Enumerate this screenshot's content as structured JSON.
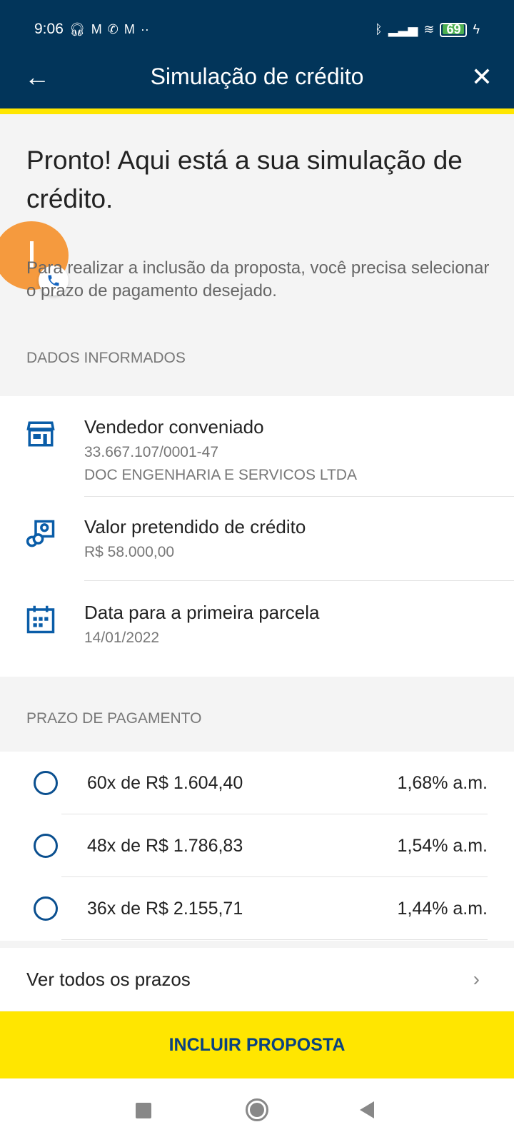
{
  "status_bar": {
    "time": "9:06",
    "battery": "69"
  },
  "header": {
    "title": "Simulação de crédito"
  },
  "main": {
    "heading": "Pronto! Aqui está a sua simulação de crédito.",
    "subtitle": "Para realizar a inclusão da proposta, você precisa selecionar o prazo de pagamento desejado.",
    "data_section": {
      "label": "DADOS INFORMADOS",
      "items": [
        {
          "title": "Vendedor conveniado",
          "lines": [
            "33.667.107/0001-47",
            "DOC ENGENHARIA E SERVICOS LTDA"
          ],
          "icon": "store-icon"
        },
        {
          "title": "Valor pretendido de crédito",
          "lines": [
            "R$ 58.000,00"
          ],
          "icon": "money-icon"
        },
        {
          "title": "Data para a primeira parcela",
          "lines": [
            "14/01/2022"
          ],
          "icon": "calendar-icon"
        }
      ]
    },
    "payment_section": {
      "label": "PRAZO DE PAGAMENTO",
      "options": [
        {
          "label": "60x de R$ 1.604,40",
          "rate": "1,68% a.m.",
          "selected": false
        },
        {
          "label": "48x de R$ 1.786,83",
          "rate": "1,54% a.m.",
          "selected": false
        },
        {
          "label": "36x de R$ 2.155,71",
          "rate": "1,44% a.m.",
          "selected": false
        }
      ]
    },
    "see_all": "Ver todos os prazos",
    "submit": "INCLUIR PROPOSTA"
  },
  "colors": {
    "header": "#02355a",
    "accent": "#ffe600",
    "icon": "#0a5da8"
  }
}
